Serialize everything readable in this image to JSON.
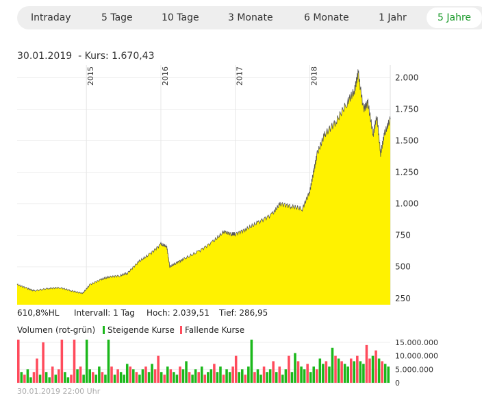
{
  "tabs": [
    {
      "label": "Intraday"
    },
    {
      "label": "5 Tage"
    },
    {
      "label": "10 Tage"
    },
    {
      "label": "3 Monate"
    },
    {
      "label": "6 Monate"
    },
    {
      "label": "1 Jahr"
    },
    {
      "label": "5 Jahre",
      "active": true
    }
  ],
  "header": {
    "date": "30.01.2019",
    "kurs": "- Kurs: 1.670,43"
  },
  "stats": {
    "hl": "610,8%HL",
    "intervall": "Intervall: 1 Tag",
    "hoch": "Hoch:  2.039,51",
    "tief": "Tief:   286,95"
  },
  "legend": {
    "title": "Volumen (rot-grün)",
    "up": "Steigende Kurse",
    "down": "Fallende Kurse"
  },
  "footer": "30.01.2019 22:00 Uhr",
  "colors": {
    "fill": "#fff200",
    "line": "#555555",
    "up": "#1bb81b",
    "down": "#ff4b5c",
    "active_tab": "#1a9a2a"
  },
  "chart_data": [
    {
      "type": "area",
      "title": "Kurs",
      "x_ticks": [
        "2015",
        "2016",
        "2017",
        "2018"
      ],
      "xlim": [
        2014.07,
        2019.08
      ],
      "y_ticks": [
        "250",
        "500",
        "750",
        "1.000",
        "1.250",
        "1.500",
        "1.750",
        "2.000"
      ],
      "y_tick_values": [
        250,
        500,
        750,
        1000,
        1250,
        1500,
        1750,
        2000
      ],
      "ylim": [
        200,
        2100
      ],
      "x": [
        2014.07,
        2014.2,
        2014.3,
        2014.5,
        2014.65,
        2014.8,
        2014.95,
        2015.05,
        2015.2,
        2015.3,
        2015.45,
        2015.55,
        2015.7,
        2015.85,
        2016.0,
        2016.08,
        2016.12,
        2016.2,
        2016.3,
        2016.5,
        2016.7,
        2016.85,
        2016.95,
        2017.0,
        2017.15,
        2017.3,
        2017.5,
        2017.6,
        2017.75,
        2017.9,
        2018.0,
        2018.05,
        2018.1,
        2018.2,
        2018.35,
        2018.5,
        2018.6,
        2018.65,
        2018.72,
        2018.78,
        2018.85,
        2018.9,
        2018.95,
        2019.0,
        2019.08
      ],
      "values": [
        360,
        330,
        310,
        330,
        335,
        310,
        290,
        360,
        400,
        420,
        430,
        450,
        540,
        600,
        680,
        660,
        500,
        530,
        560,
        620,
        700,
        780,
        760,
        760,
        800,
        850,
        920,
        1000,
        980,
        960,
        1100,
        1250,
        1400,
        1550,
        1650,
        1800,
        1900,
        2040,
        1750,
        1800,
        1550,
        1700,
        1400,
        1550,
        1670
      ]
    },
    {
      "type": "bar",
      "title": "Volumen",
      "y_ticks": [
        "15.000.000",
        "10.000.000",
        "5.000.000",
        "0"
      ],
      "y_tick_values": [
        15,
        10,
        5,
        0
      ],
      "ylim": [
        0,
        16
      ],
      "unit": "Mio",
      "values": [
        16,
        4,
        3,
        5,
        2,
        4,
        9,
        3,
        15,
        4,
        2,
        6,
        3,
        5,
        16,
        4,
        2,
        3,
        16,
        5,
        6,
        3,
        16,
        5,
        4,
        3,
        6,
        4,
        3,
        16,
        6,
        3,
        5,
        4,
        3,
        7,
        6,
        5,
        4,
        3,
        5,
        6,
        4,
        7,
        5,
        10,
        4,
        3,
        6,
        5,
        4,
        3,
        6,
        5,
        8,
        4,
        3,
        5,
        4,
        6,
        3,
        4,
        5,
        7,
        4,
        6,
        3,
        5,
        4,
        6,
        10,
        4,
        5,
        3,
        6,
        16,
        4,
        5,
        3,
        6,
        4,
        5,
        8,
        4,
        6,
        3,
        5,
        10,
        4,
        11,
        8,
        6,
        5,
        7,
        4,
        6,
        5,
        9,
        7,
        8,
        6,
        13,
        10,
        9,
        8,
        7,
        6,
        9,
        8,
        10,
        8,
        7,
        14,
        9,
        10,
        12,
        9,
        8,
        7,
        6
      ],
      "up": [
        0,
        1,
        0,
        1,
        1,
        0,
        0,
        1,
        0,
        1,
        1,
        0,
        1,
        0,
        0,
        1,
        1,
        0,
        0,
        1,
        0,
        1,
        1,
        1,
        0,
        1,
        1,
        0,
        1,
        1,
        0,
        1,
        0,
        1,
        1,
        1,
        0,
        1,
        0,
        1,
        1,
        0,
        1,
        1,
        0,
        0,
        1,
        0,
        1,
        0,
        1,
        1,
        0,
        1,
        1,
        0,
        1,
        1,
        0,
        1,
        0,
        1,
        1,
        0,
        1,
        1,
        0,
        1,
        1,
        0,
        0,
        1,
        1,
        0,
        1,
        1,
        0,
        1,
        1,
        0,
        1,
        1,
        0,
        1,
        0,
        1,
        1,
        0,
        1,
        1,
        0,
        1,
        1,
        0,
        1,
        1,
        0,
        1,
        1,
        0,
        1,
        1,
        0,
        1,
        0,
        1,
        1,
        0,
        1,
        0,
        1,
        1,
        0,
        0,
        1,
        0,
        1,
        0,
        1,
        1
      ]
    }
  ]
}
